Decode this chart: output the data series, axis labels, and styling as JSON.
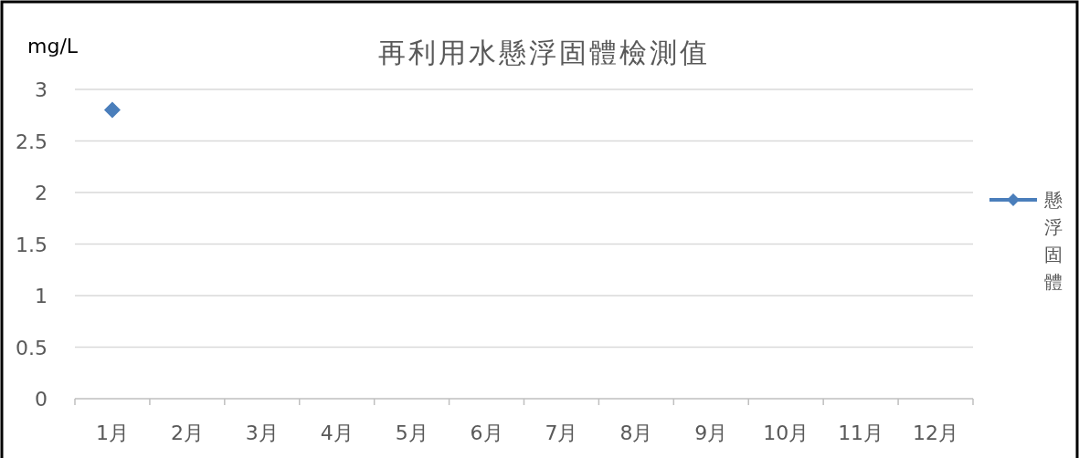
{
  "chart_data": {
    "type": "line",
    "title": "再利用水懸浮固體檢測值",
    "ylabel": "mg/L",
    "categories": [
      "1月",
      "2月",
      "3月",
      "4月",
      "5月",
      "6月",
      "7月",
      "8月",
      "9月",
      "10月",
      "11月",
      "12月"
    ],
    "series": [
      {
        "name": "懸浮固體",
        "color": "#4a7ebb",
        "values": [
          2.8,
          null,
          null,
          null,
          null,
          null,
          null,
          null,
          null,
          null,
          null,
          null
        ]
      }
    ],
    "ylim": [
      0,
      3
    ],
    "yticks": [
      0,
      0.5,
      1,
      1.5,
      2,
      2.5,
      3
    ],
    "grid": "y",
    "legend": "right",
    "marker": "diamond"
  }
}
